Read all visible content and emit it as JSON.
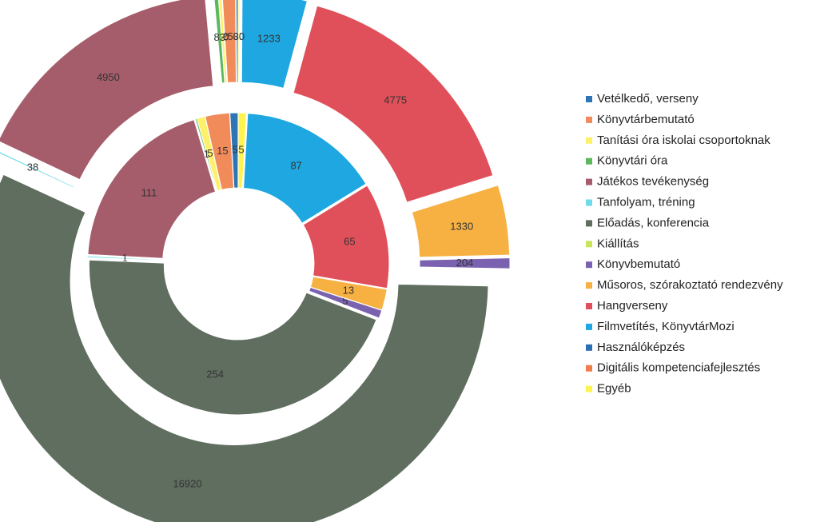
{
  "chart_data": {
    "type": "donut",
    "categories": [
      "Vetélkedő, verseny",
      "Könyvtárbemutató",
      "Tanítási óra iskolai csoportoknak",
      "Könyvtári óra",
      "Játékos tevékenység",
      "Tanfolyam, tréning",
      "Előadás, konferencia",
      "Kiállítás",
      "Könyvbemutató",
      "Műsoros, szórakoztató rendezvény",
      "Hangverseny",
      "Filmvetítés, KönyvtárMozi",
      "Használóképzés",
      "Digitális kompetenciafejlesztés",
      "Egyéb"
    ],
    "colors": [
      "#2e75b6",
      "#f28b5a",
      "#fff06a",
      "#5cb85c",
      "#a65d6b",
      "#6fdbe8",
      "#5f6e5f",
      "#c9e65a",
      "#7b62b0",
      "#f7b143",
      "#e0505a",
      "#1ea7e0",
      "#2c6fb0",
      "#f07c4a",
      "#fff44f"
    ],
    "series": [
      {
        "values": [
          5,
          15,
          5,
          1,
          111,
          1,
          254,
          0,
          5,
          13,
          65,
          87,
          0,
          0,
          5
        ]
      },
      {
        "values": [
          40,
          250,
          60,
          83,
          4950,
          38,
          16920,
          0,
          204,
          1330,
          4775,
          1233,
          0,
          0,
          30
        ]
      }
    ],
    "legend": "right"
  }
}
